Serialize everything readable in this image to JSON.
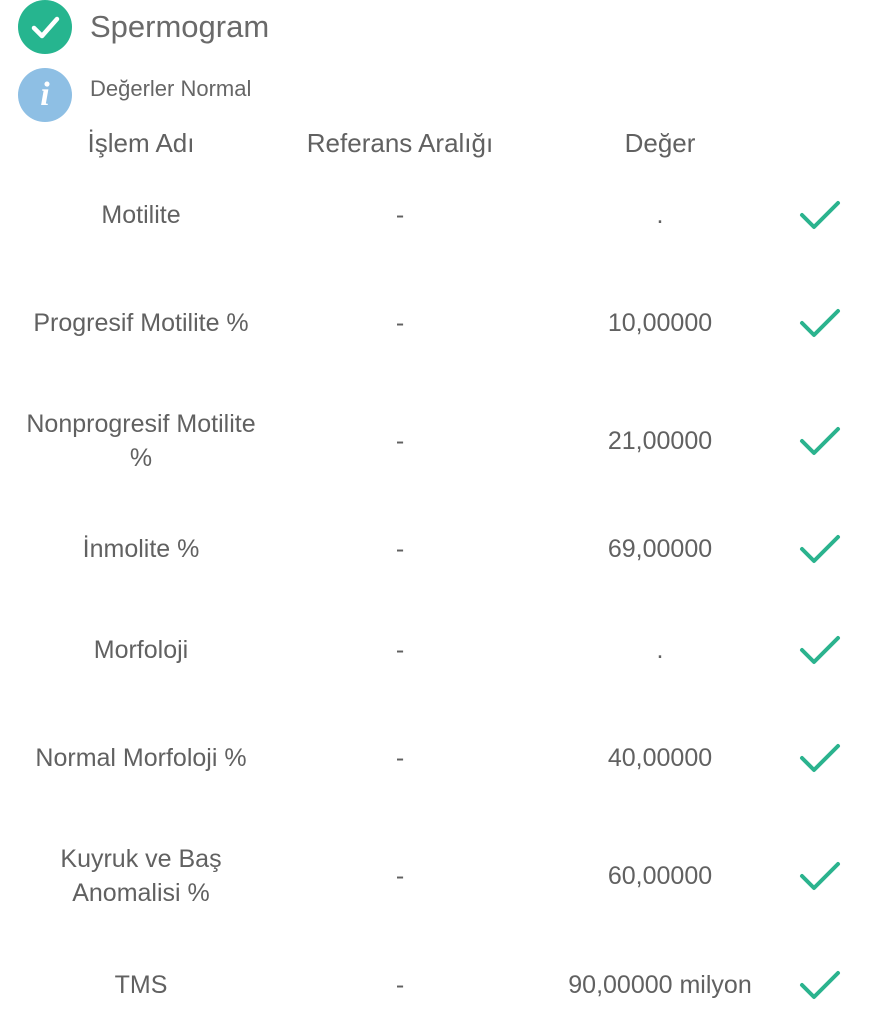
{
  "header": {
    "title": "Spermogram",
    "status": "Değerler Normal",
    "title_icon": "check-circle-icon",
    "status_icon": "info-icon"
  },
  "colors": {
    "green": "#26b58f",
    "info": "#8ebfe4",
    "check": "#2bb38e"
  },
  "table": {
    "columns": [
      "İşlem Adı",
      "Referans Aralığı",
      "Değer"
    ],
    "rows": [
      {
        "name": "Motilite",
        "ref": "-",
        "value": "."
      },
      {
        "name": "Progresif Motilite %",
        "ref": "-",
        "value": "10,00000"
      },
      {
        "name": "Nonprogresif Motilite %",
        "ref": "-",
        "value": "21,00000"
      },
      {
        "name": "İnmolite %",
        "ref": "-",
        "value": "69,00000"
      },
      {
        "name": "Morfoloji",
        "ref": "-",
        "value": "."
      },
      {
        "name": "Normal Morfoloji %",
        "ref": "-",
        "value": "40,00000"
      },
      {
        "name": "Kuyruk ve Baş Anomalisi %",
        "ref": "-",
        "value": "60,00000"
      },
      {
        "name": "TMS",
        "ref": "-",
        "value": "90,00000 milyon"
      }
    ]
  }
}
